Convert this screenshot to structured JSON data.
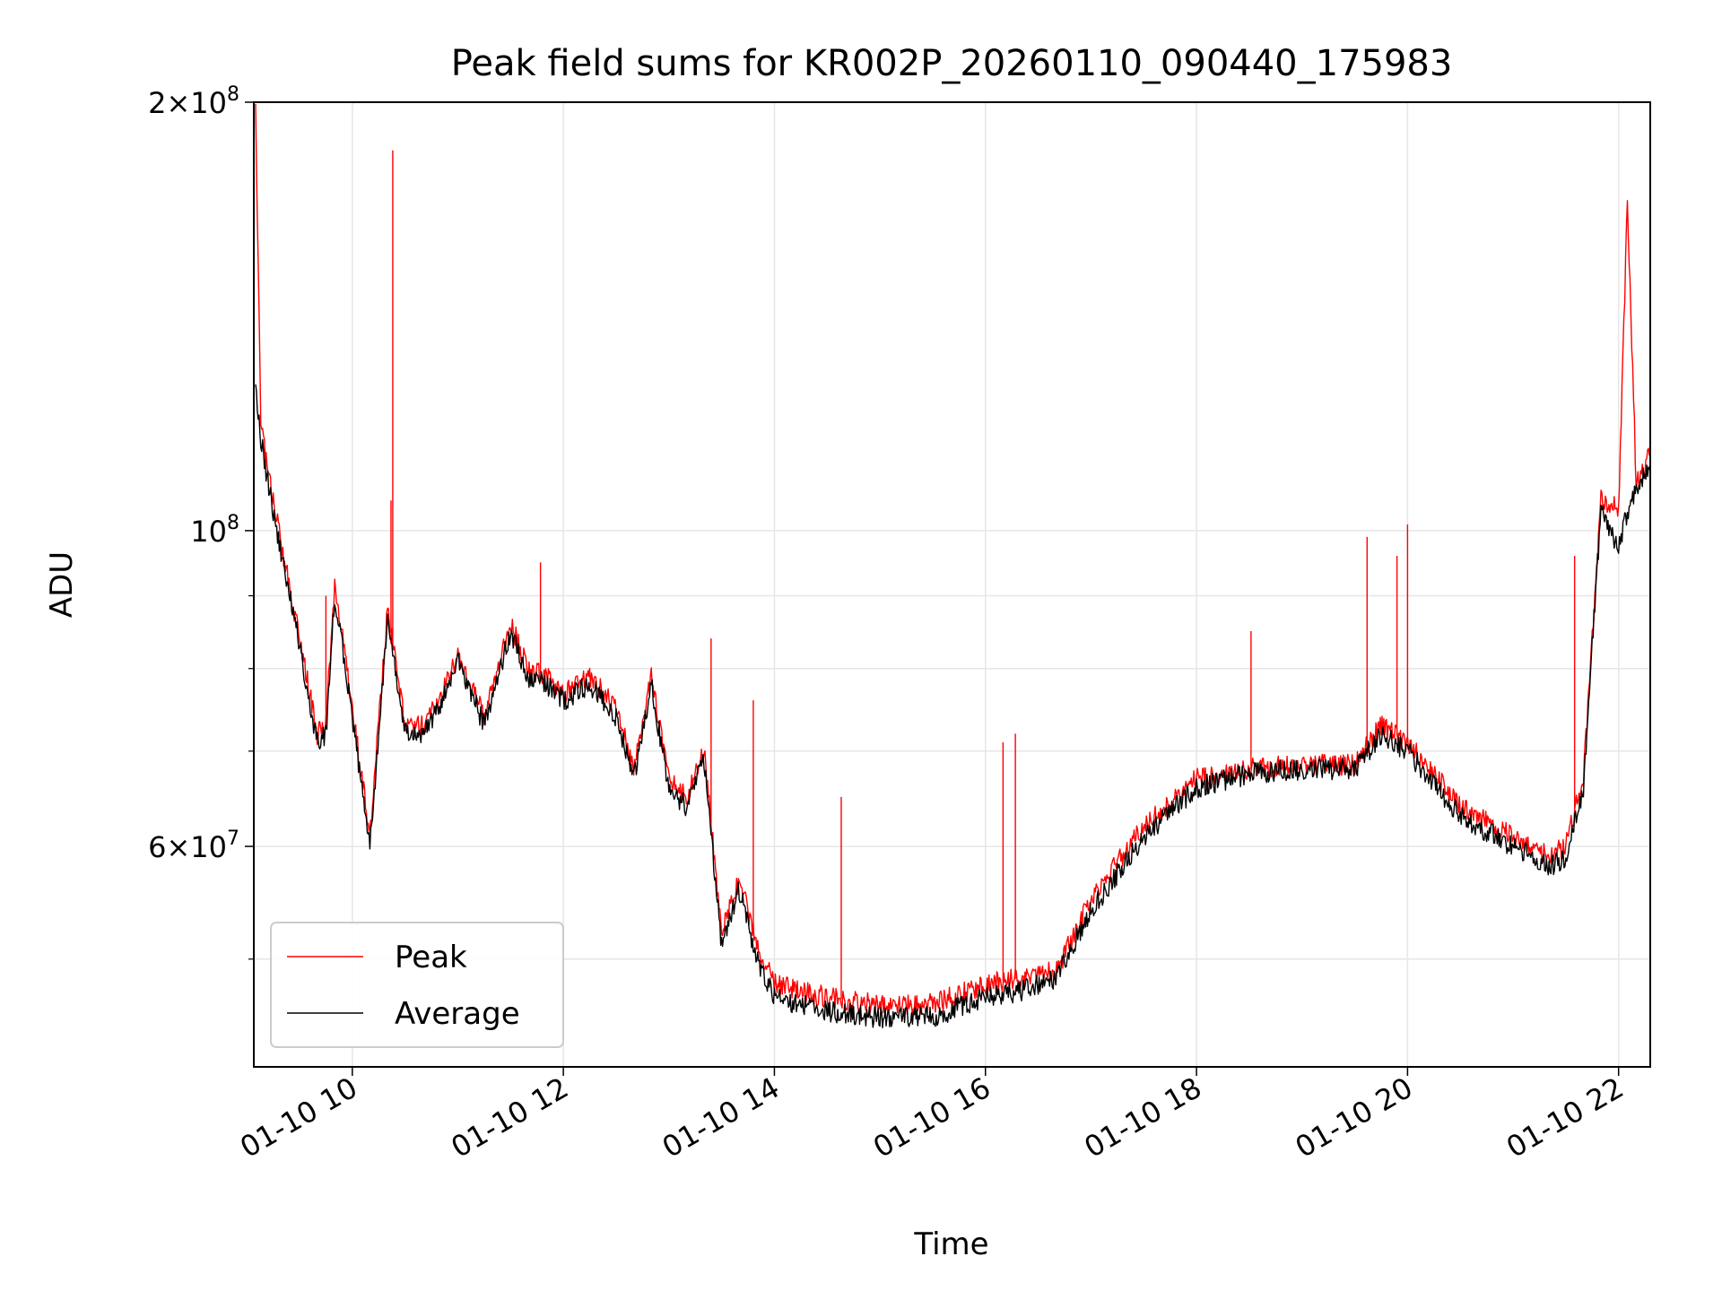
{
  "chart_data": {
    "type": "line",
    "title": "Peak field sums for KR002P_20260110_090440_175983",
    "xlabel": "Time",
    "ylabel": "ADU",
    "x_scale": "time",
    "y_scale": "log",
    "xlim": [
      "2026-01-10 09:04",
      "2026-01-10 22:18"
    ],
    "ylim": [
      42000000,
      200000000
    ],
    "grid": true,
    "legend_position": "lower-left",
    "x_ticks": [
      "01-10 10",
      "01-10 12",
      "01-10 14",
      "01-10 16",
      "01-10 18",
      "01-10 20",
      "01-10 22"
    ],
    "y_major_ticks": [
      {
        "value": 200000000,
        "mantissa": "2",
        "exponent": "8"
      },
      {
        "value": 100000000,
        "mantissa": "",
        "exponent": "8"
      },
      {
        "value": 60000000,
        "mantissa": "6",
        "exponent": "7"
      }
    ],
    "y_minor_tick_values": [
      50000000,
      70000000,
      80000000,
      90000000
    ],
    "x": [
      "09:05",
      "09:08",
      "09:15",
      "09:30",
      "09:40",
      "09:45",
      "09:50",
      "10:00",
      "10:10",
      "10:20",
      "10:30",
      "10:40",
      "10:50",
      "11:00",
      "11:15",
      "11:30",
      "11:40",
      "11:50",
      "12:00",
      "12:15",
      "12:30",
      "12:40",
      "12:50",
      "13:00",
      "13:10",
      "13:20",
      "13:30",
      "13:40",
      "13:50",
      "14:00",
      "14:30",
      "15:00",
      "15:30",
      "16:00",
      "16:20",
      "16:40",
      "17:00",
      "17:30",
      "18:00",
      "18:30",
      "19:00",
      "19:30",
      "19:45",
      "20:00",
      "20:30",
      "21:00",
      "21:20",
      "21:30",
      "21:40",
      "21:50",
      "22:00",
      "22:05",
      "22:10",
      "22:18"
    ],
    "series": [
      {
        "name": "Peak",
        "color": "#ff0000",
        "values": [
          200000000,
          118000000,
          105000000,
          84000000,
          72000000,
          73000000,
          92000000,
          75000000,
          61000000,
          88000000,
          73000000,
          73000000,
          76000000,
          82000000,
          74000000,
          86000000,
          80000000,
          79000000,
          77000000,
          79000000,
          75000000,
          68000000,
          79000000,
          67000000,
          65000000,
          70000000,
          52000000,
          57000000,
          51000000,
          48000000,
          47000000,
          46500000,
          46500000,
          48000000,
          48500000,
          49000000,
          55000000,
          62000000,
          67000000,
          68000000,
          68500000,
          68500000,
          73000000,
          71000000,
          64000000,
          61000000,
          59000000,
          60000000,
          67000000,
          105000000,
          104000000,
          170000000,
          108000000,
          113000000
        ]
      },
      {
        "name": "Average",
        "color": "#000000",
        "values": [
          125000000,
          116000000,
          103000000,
          83000000,
          71000000,
          72000000,
          90000000,
          74000000,
          60000000,
          86000000,
          72000000,
          72000000,
          75000000,
          81000000,
          73000000,
          85000000,
          79000000,
          78000000,
          76000000,
          78000000,
          74000000,
          67000000,
          78000000,
          66000000,
          64000000,
          69000000,
          51000000,
          56000000,
          50000000,
          47000000,
          46000000,
          45500000,
          45500000,
          47000000,
          47500000,
          48500000,
          54000000,
          61000000,
          66000000,
          67500000,
          68000000,
          68000000,
          72000000,
          70000000,
          63000000,
          60000000,
          58000000,
          59000000,
          66000000,
          104000000,
          97000000,
          103000000,
          107000000,
          112000000
        ]
      }
    ],
    "annotations": {
      "peak_spikes": [
        [
          "09:45",
          90000000
        ],
        [
          "10:23",
          185000000
        ],
        [
          "10:22",
          105000000
        ],
        [
          "11:47",
          95000000
        ],
        [
          "13:24",
          84000000
        ],
        [
          "13:48",
          76000000
        ],
        [
          "14:38",
          65000000
        ],
        [
          "16:10",
          71000000
        ],
        [
          "16:17",
          72000000
        ],
        [
          "18:31",
          85000000
        ],
        [
          "19:37",
          99000000
        ],
        [
          "19:54",
          96000000
        ],
        [
          "20:00",
          101000000
        ],
        [
          "21:35",
          96000000
        ]
      ]
    }
  }
}
